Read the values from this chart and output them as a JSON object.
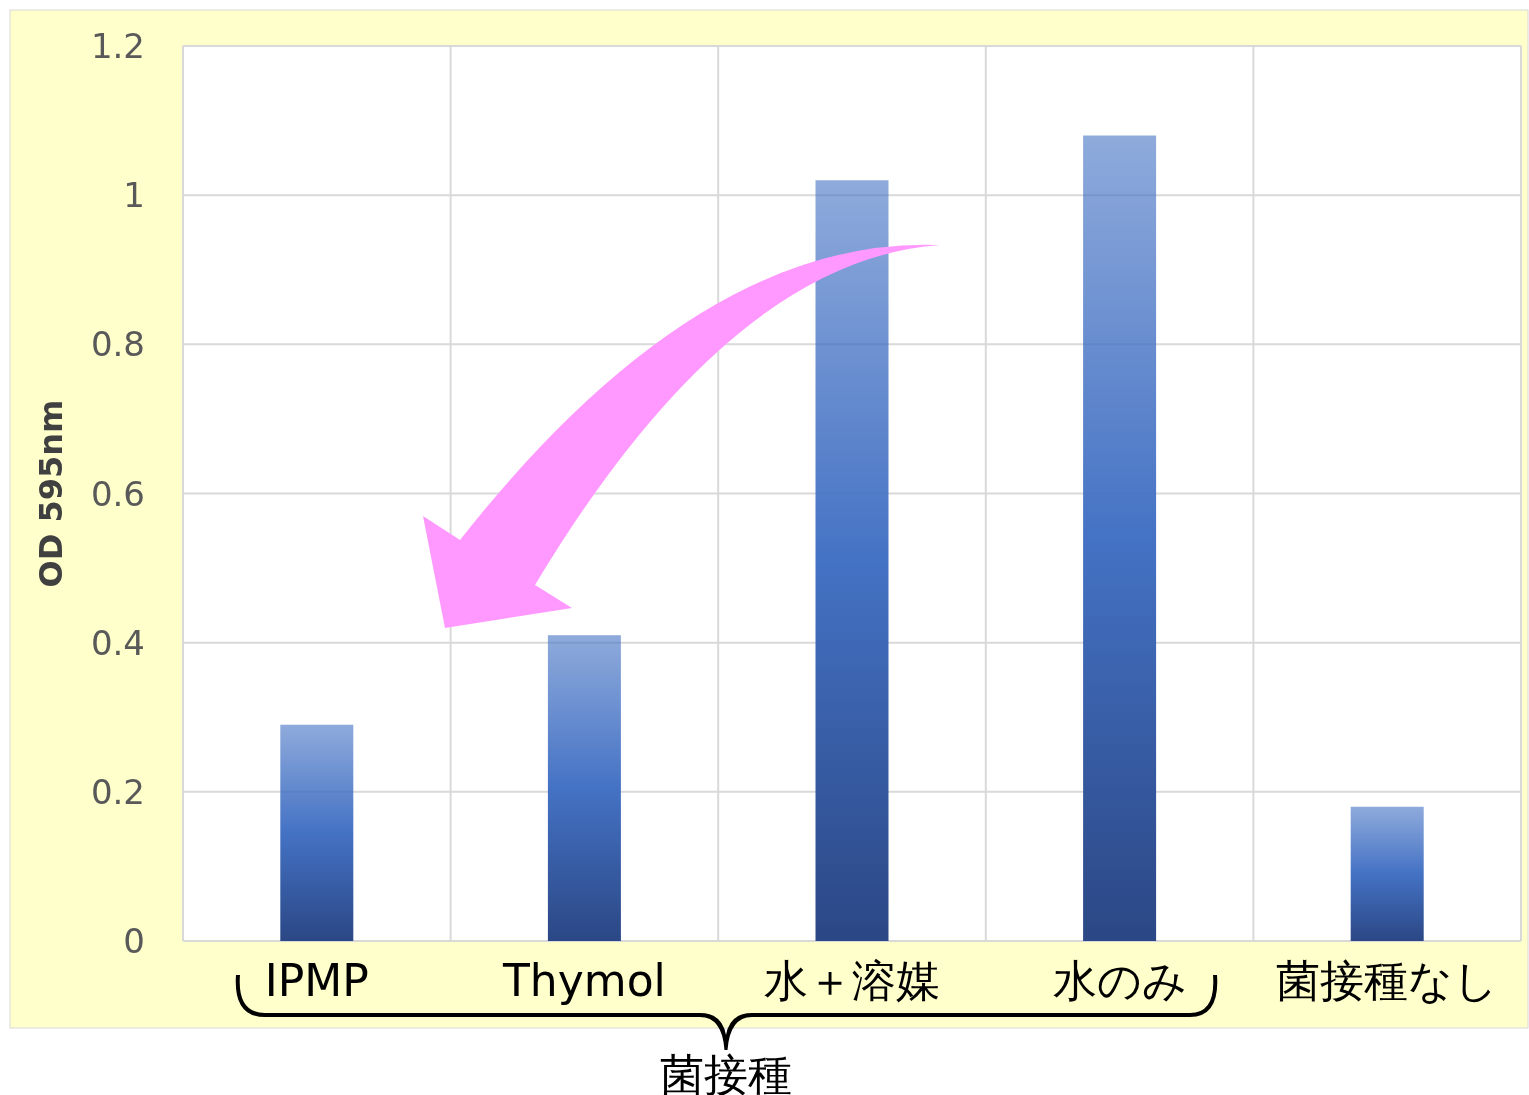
{
  "chart_data": {
    "type": "bar",
    "ylabel": "OD 595nm",
    "categories": [
      "IPMP",
      "Thymol",
      "水＋溶媒",
      "水のみ",
      "菌接種なし"
    ],
    "values": [
      0.29,
      0.41,
      1.02,
      1.08,
      0.18
    ],
    "color": "#4472c4",
    "ylim": [
      0,
      1.2
    ],
    "yticks": [
      0,
      0.2,
      0.4,
      0.6,
      0.8,
      1,
      1.2
    ],
    "grid": true,
    "annotations": [
      "菌接種"
    ]
  }
}
